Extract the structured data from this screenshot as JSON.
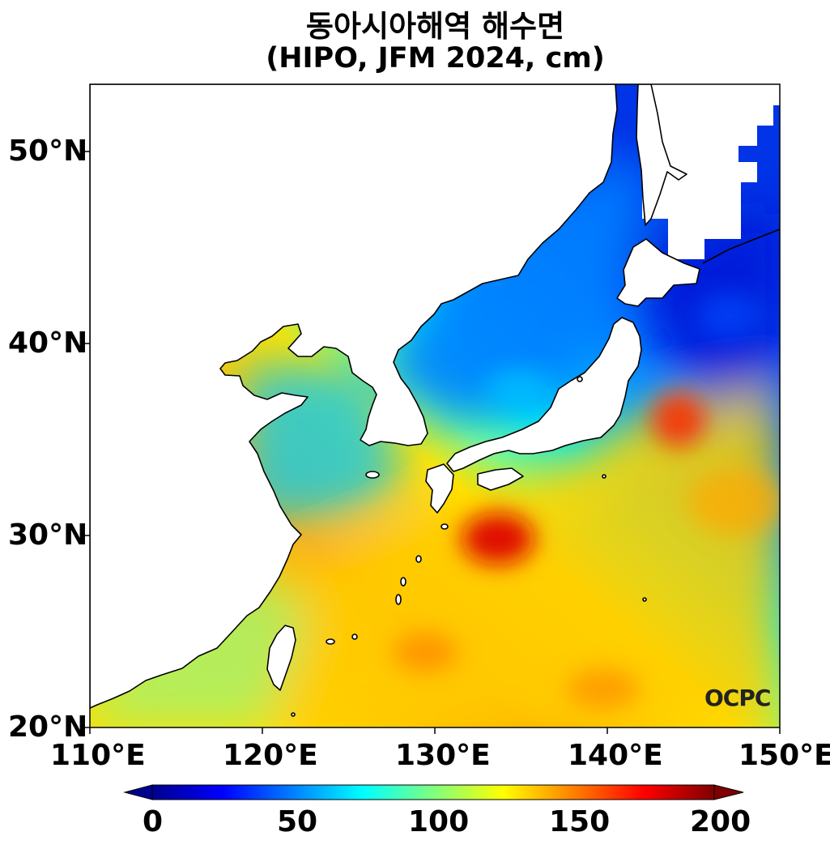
{
  "title": {
    "line1": "동아시아해역 해수면",
    "line2": "(HIPO, JFM 2024, cm)"
  },
  "map": {
    "lon_range": [
      110,
      150
    ],
    "lat_range": [
      20,
      53.5
    ],
    "x_ticks": [
      "110°E",
      "120°E",
      "130°E",
      "140°E",
      "150°E"
    ],
    "y_ticks": [
      "50°N",
      "40°N",
      "30°N",
      "20°N"
    ],
    "watermark": "OCPC",
    "land_color": "#ffffff"
  },
  "colorbar": {
    "range": [
      0,
      200
    ],
    "tick_labels": [
      "0",
      "50",
      "100",
      "150",
      "200"
    ],
    "colormap": "jet",
    "extend": "both"
  }
}
